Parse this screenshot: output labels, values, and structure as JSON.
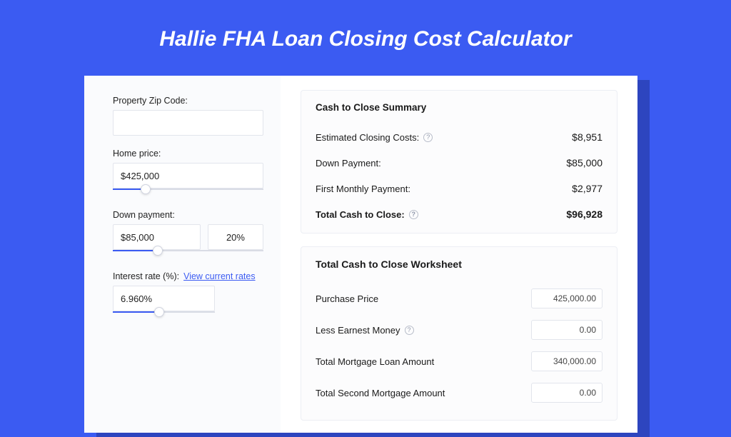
{
  "page": {
    "title": "Hallie FHA Loan Closing Cost Calculator",
    "bg_color": "#3b5bf2"
  },
  "form": {
    "zip": {
      "label": "Property Zip Code:",
      "value": ""
    },
    "home_price": {
      "label": "Home price:",
      "value": "$425,000",
      "slider_pct": 22
    },
    "down_payment": {
      "label": "Down payment:",
      "value": "$85,000",
      "pct": "20%",
      "slider_pct": 30
    },
    "interest": {
      "label": "Interest rate (%):",
      "link": "View current rates",
      "value": "6.960%",
      "slider_pct": 45
    }
  },
  "summary": {
    "title": "Cash to Close Summary",
    "rows": [
      {
        "label": "Estimated Closing Costs:",
        "value": "$8,951",
        "help": true
      },
      {
        "label": "Down Payment:",
        "value": "$85,000",
        "help": false
      },
      {
        "label": "First Monthly Payment:",
        "value": "$2,977",
        "help": false
      }
    ],
    "total": {
      "label": "Total Cash to Close:",
      "value": "$96,928",
      "help": true
    }
  },
  "worksheet": {
    "title": "Total Cash to Close Worksheet",
    "rows": [
      {
        "label": "Purchase Price",
        "value": "425,000.00",
        "help": false
      },
      {
        "label": "Less Earnest Money",
        "value": "0.00",
        "help": true
      },
      {
        "label": "Total Mortgage Loan Amount",
        "value": "340,000.00",
        "help": false
      },
      {
        "label": "Total Second Mortgage Amount",
        "value": "0.00",
        "help": false
      }
    ]
  }
}
